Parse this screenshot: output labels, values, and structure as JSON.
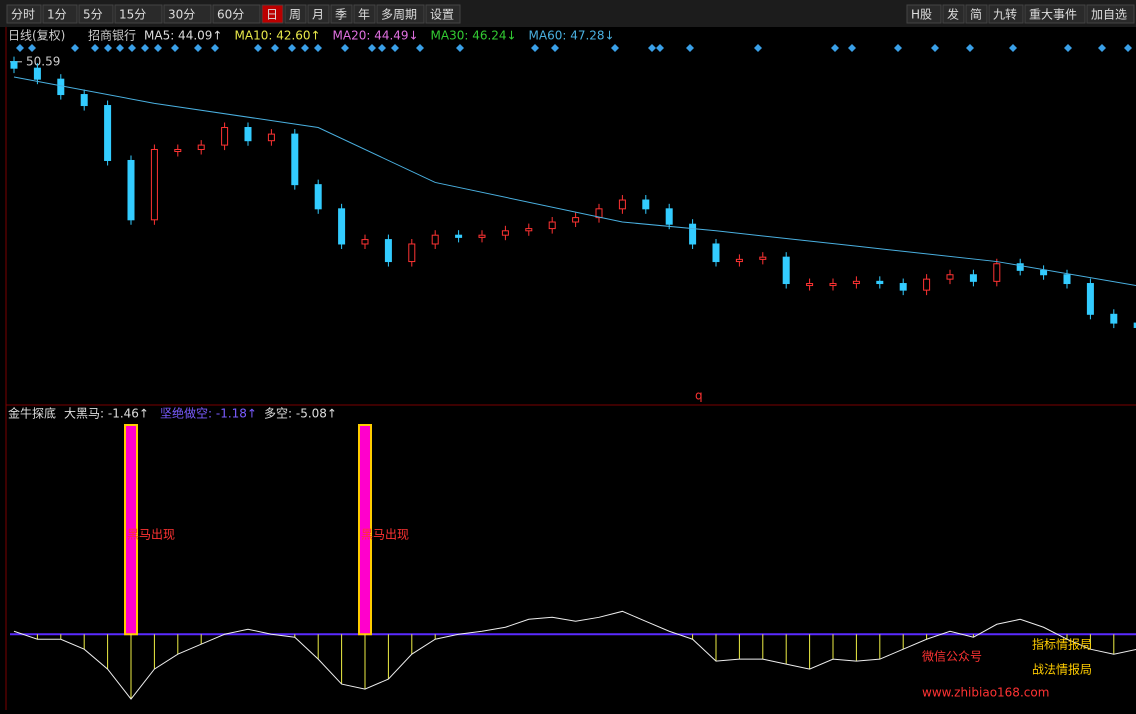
{
  "toolbar": {
    "left": [
      "分时",
      "1分",
      "5分",
      "15分",
      "30分",
      "60分",
      "日",
      "周",
      "月",
      "季",
      "年",
      "多周期",
      "设置"
    ],
    "right": [
      "H股",
      "发",
      "简",
      "九转",
      "重大事件",
      "加自选"
    ]
  },
  "price_pane": {
    "header": [
      "日线(复权)",
      "招商银行",
      "MA5: 44.09↑",
      "MA10: 42.60↑",
      "MA20: 44.49↓",
      "MA30: 46.24↓",
      "MA60: 47.28↓"
    ],
    "high_label": "50.59",
    "high_value": 50.59,
    "ylim": [
      35.2,
      50.9
    ],
    "closes": [
      50.3,
      49.8,
      49.1,
      48.6,
      46.1,
      43.4,
      46.6,
      46.6,
      46.8,
      47.6,
      47.0,
      47.3,
      45.0,
      43.9,
      42.3,
      42.5,
      41.5,
      42.3,
      42.7,
      42.6,
      42.7,
      42.9,
      43.0,
      43.3,
      43.5,
      43.9,
      44.3,
      43.9,
      43.2,
      42.3,
      41.5,
      41.6,
      41.7,
      40.5,
      40.5,
      40.5,
      40.6,
      40.5,
      40.2,
      40.7,
      40.9,
      40.6,
      41.4,
      41.1,
      40.9,
      40.5,
      39.1,
      38.7,
      38.5
    ],
    "ma60": {
      "x": [
        0,
        6,
        13,
        18,
        26,
        30,
        36,
        42,
        48
      ],
      "values": [
        49.9,
        48.7,
        47.6,
        45.1,
        43.3,
        42.9,
        42.2,
        41.5,
        40.4
      ]
    },
    "marker": "q"
  },
  "indicator_pane": {
    "header": [
      "金牛探底",
      "大黑马: -1.46↑",
      "坚绝做空: -1.18↑",
      "多空: -5.08↑"
    ],
    "ylim": [
      -14.2,
      43
    ],
    "values": [
      0.6,
      -1,
      -1,
      -3,
      -7,
      -13,
      -7,
      -4,
      -2,
      0,
      1,
      0,
      -0.6,
      -5,
      -10,
      -11,
      -9,
      -4,
      -1,
      0,
      0.6,
      1.4,
      3,
      3.4,
      2.6,
      3.4,
      4.6,
      2.6,
      0.6,
      -1,
      -5.4,
      -5,
      -5,
      -6,
      -7,
      -5,
      -5.4,
      -5,
      -3,
      -1,
      0.6,
      -0.6,
      2,
      3,
      1.4,
      -1,
      -3,
      -4,
      -3
    ],
    "signals": [
      5,
      15
    ],
    "signal_label": "黑马出现"
  },
  "watermark": {
    "wechat": "微信公众号",
    "line1": "指标情报局",
    "line2": "战法情报局",
    "url": "www.zhibiao168.com"
  }
}
